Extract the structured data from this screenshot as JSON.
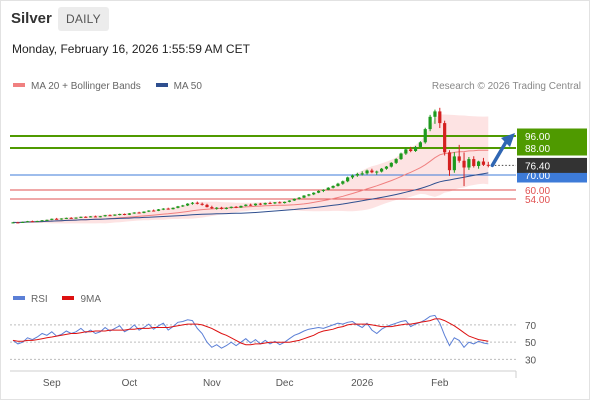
{
  "header": {
    "title": "Silver",
    "timeframe": "DAILY"
  },
  "timestamp": "Monday, February 16, 2026 1:55:59 AM CET",
  "legend_main": [
    {
      "label": "MA 20 + Bollinger Bands",
      "color": "#f08080"
    },
    {
      "label": "MA 50",
      "color": "#2f4f8f"
    }
  ],
  "credit": "Research © 2026 Trading Central",
  "legend_rsi": [
    {
      "label": "RSI",
      "color": "#5b7fd6"
    },
    {
      "label": "9MA",
      "color": "#dd1111"
    }
  ],
  "colors": {
    "bull": "#1e9a1e",
    "bear": "#d42020",
    "bb_fill": "#fcd9d9",
    "ma20": "#f08080",
    "ma50": "#2f4f8f",
    "resistance": "#4f9a00",
    "pivot": "#3d7bd8",
    "support": "#e05050",
    "arrow": "#2f66b3",
    "price_tag": "#333333",
    "rsi": "#5b7fd6",
    "rsi_ma": "#dd1111"
  },
  "chart_data": [
    {
      "type": "candlestick",
      "title": "Silver",
      "subtitle": "DAILY",
      "ylim": [
        0,
        120
      ],
      "x_ticks": [
        "Sep",
        "Oct",
        "Nov",
        "Dec",
        "2026",
        "Feb"
      ],
      "last_price": 76.4,
      "levels": [
        {
          "value": 96.0,
          "label": "96.00",
          "kind": "resistance"
        },
        {
          "value": 88.0,
          "label": "88.00",
          "kind": "resistance"
        },
        {
          "value": 70.0,
          "label": "70.00",
          "kind": "pivot"
        },
        {
          "value": 60.0,
          "label": "60.00",
          "kind": "support"
        },
        {
          "value": 54.0,
          "label": "54.00",
          "kind": "support"
        }
      ],
      "series": [
        {
          "name": "MA 20 + Bollinger Bands"
        },
        {
          "name": "MA 50"
        }
      ],
      "candles": [
        [
          0,
          38.2,
          38.6,
          37.9,
          38.4
        ],
        [
          1,
          38.4,
          38.8,
          38.1,
          38.3
        ],
        [
          2,
          38.3,
          38.9,
          38.0,
          38.7
        ],
        [
          3,
          38.7,
          39.4,
          38.5,
          39.2
        ],
        [
          4,
          39.2,
          39.6,
          38.8,
          39.0
        ],
        [
          5,
          39.0,
          39.5,
          38.7,
          39.3
        ],
        [
          6,
          39.3,
          40.0,
          39.1,
          39.8
        ],
        [
          7,
          39.8,
          40.3,
          39.4,
          40.1
        ],
        [
          8,
          40.1,
          41.0,
          39.9,
          40.8
        ],
        [
          9,
          40.8,
          41.4,
          40.3,
          40.6
        ],
        [
          10,
          40.6,
          41.2,
          40.2,
          41.0
        ],
        [
          11,
          41.0,
          41.6,
          40.7,
          41.4
        ],
        [
          12,
          41.4,
          41.9,
          40.9,
          41.2
        ],
        [
          13,
          41.2,
          41.8,
          40.8,
          41.6
        ],
        [
          14,
          41.6,
          42.3,
          41.3,
          42.1
        ],
        [
          15,
          42.1,
          42.5,
          41.6,
          41.9
        ],
        [
          16,
          41.9,
          42.6,
          41.7,
          42.4
        ],
        [
          17,
          42.4,
          42.9,
          42.0,
          42.3
        ],
        [
          18,
          42.3,
          42.7,
          41.8,
          42.5
        ],
        [
          19,
          42.5,
          43.4,
          42.2,
          43.2
        ],
        [
          20,
          43.2,
          43.7,
          42.8,
          43.0
        ],
        [
          21,
          43.0,
          43.8,
          42.7,
          43.6
        ],
        [
          22,
          43.6,
          44.2,
          43.1,
          44.0
        ],
        [
          23,
          44.0,
          44.3,
          43.2,
          43.5
        ],
        [
          24,
          43.5,
          44.6,
          43.3,
          44.4
        ],
        [
          25,
          44.4,
          45.2,
          44.1,
          45.0
        ],
        [
          26,
          45.0,
          45.5,
          44.3,
          44.7
        ],
        [
          27,
          44.7,
          45.8,
          44.5,
          45.6
        ],
        [
          28,
          45.6,
          46.5,
          45.3,
          46.3
        ],
        [
          29,
          46.3,
          47.0,
          45.8,
          46.1
        ],
        [
          30,
          46.1,
          47.3,
          45.9,
          47.1
        ],
        [
          31,
          47.1,
          47.9,
          46.6,
          47.6
        ],
        [
          32,
          47.6,
          48.2,
          46.9,
          47.2
        ],
        [
          33,
          47.2,
          48.4,
          47.0,
          48.1
        ],
        [
          34,
          48.1,
          49.4,
          47.8,
          49.1
        ],
        [
          35,
          49.1,
          50.1,
          48.7,
          49.7
        ],
        [
          36,
          49.7,
          51.2,
          49.3,
          50.9
        ],
        [
          37,
          50.9,
          52.0,
          50.2,
          51.5
        ],
        [
          38,
          51.5,
          52.3,
          50.4,
          50.8
        ],
        [
          39,
          50.8,
          51.6,
          49.6,
          50.1
        ],
        [
          40,
          50.1,
          50.8,
          48.3,
          48.6
        ],
        [
          41,
          48.6,
          49.5,
          47.3,
          47.8
        ],
        [
          42,
          47.8,
          48.6,
          46.9,
          48.2
        ],
        [
          43,
          48.2,
          48.8,
          47.0,
          47.4
        ],
        [
          44,
          47.4,
          48.5,
          47.1,
          48.1
        ],
        [
          45,
          48.1,
          49.0,
          47.7,
          48.8
        ],
        [
          46,
          48.8,
          49.3,
          47.9,
          48.3
        ],
        [
          47,
          48.3,
          49.6,
          48.1,
          49.4
        ],
        [
          48,
          49.4,
          50.5,
          49.1,
          50.2
        ],
        [
          49,
          50.2,
          50.9,
          49.4,
          49.8
        ],
        [
          50,
          49.8,
          51.1,
          49.5,
          50.9
        ],
        [
          51,
          50.9,
          51.4,
          49.9,
          50.4
        ],
        [
          52,
          50.4,
          51.6,
          50.1,
          51.3
        ],
        [
          53,
          51.3,
          52.2,
          50.8,
          51.1
        ],
        [
          54,
          51.1,
          52.0,
          50.6,
          51.8
        ],
        [
          55,
          51.8,
          52.4,
          51.0,
          51.3
        ],
        [
          56,
          51.3,
          52.3,
          51.0,
          52.1
        ],
        [
          57,
          52.1,
          53.2,
          51.8,
          53.0
        ],
        [
          58,
          53.0,
          54.4,
          52.7,
          54.1
        ],
        [
          59,
          54.1,
          55.3,
          53.6,
          54.9
        ],
        [
          60,
          54.9,
          56.6,
          54.6,
          56.3
        ],
        [
          61,
          56.3,
          57.4,
          55.8,
          57.1
        ],
        [
          62,
          57.1,
          58.5,
          56.6,
          58.2
        ],
        [
          63,
          58.2,
          59.7,
          57.9,
          59.4
        ],
        [
          64,
          59.4,
          60.5,
          58.6,
          60.1
        ],
        [
          65,
          60.1,
          61.9,
          59.8,
          61.5
        ],
        [
          66,
          61.5,
          63.1,
          61.0,
          62.7
        ],
        [
          67,
          62.7,
          64.8,
          62.3,
          64.2
        ],
        [
          68,
          64.2,
          66.3,
          63.5,
          65.8
        ],
        [
          69,
          65.8,
          68.9,
          65.2,
          68.4
        ],
        [
          70,
          68.4,
          70.4,
          67.4,
          69.6
        ],
        [
          71,
          69.6,
          71.5,
          68.8,
          70.7
        ],
        [
          72,
          70.7,
          72.5,
          69.6,
          71.1
        ],
        [
          73,
          71.1,
          73.6,
          70.3,
          73.0
        ],
        [
          74,
          73.0,
          74.2,
          71.2,
          71.8
        ],
        [
          75,
          71.8,
          72.9,
          70.2,
          72.3
        ],
        [
          76,
          72.3,
          74.7,
          71.7,
          74.2
        ],
        [
          77,
          74.2,
          76.0,
          73.5,
          75.6
        ],
        [
          78,
          75.6,
          78.5,
          75.0,
          78.1
        ],
        [
          79,
          78.1,
          81.2,
          77.3,
          80.6
        ],
        [
          80,
          80.6,
          84.9,
          80.1,
          84.3
        ],
        [
          81,
          84.3,
          88.2,
          83.4,
          87.1
        ],
        [
          82,
          87.1,
          88.8,
          85.2,
          86.0
        ],
        [
          83,
          86.0,
          89.4,
          85.4,
          88.7
        ],
        [
          84,
          88.7,
          92.5,
          88.2,
          91.8
        ],
        [
          85,
          91.8,
          101.5,
          90.9,
          100.6
        ],
        [
          86,
          100.6,
          110.1,
          99.2,
          108.8
        ],
        [
          87,
          108.8,
          113.6,
          104.1,
          112.4
        ],
        [
          88,
          112.4,
          114.8,
          101.3,
          104.6
        ],
        [
          89,
          104.6,
          106.2,
          83.0,
          85.1
        ],
        [
          90,
          85.1,
          86.5,
          69.4,
          73.2
        ],
        [
          91,
          73.2,
          85.2,
          71.5,
          82.4
        ],
        [
          92,
          82.4,
          90.1,
          78.2,
          79.5
        ],
        [
          93,
          79.5,
          85.0,
          62.6,
          75.0
        ],
        [
          94,
          75.0,
          82.0,
          73.4,
          80.6
        ],
        [
          95,
          80.6,
          82.5,
          75.0,
          76.0
        ],
        [
          96,
          76.0,
          79.5,
          74.2,
          79.0
        ],
        [
          97,
          79.0,
          81.4,
          76.0,
          76.8
        ],
        [
          98,
          76.8,
          78.8,
          75.1,
          76.4
        ]
      ]
    },
    {
      "type": "line",
      "title": "RSI",
      "ylim": [
        20,
        85
      ],
      "y_ticks": [
        30,
        50,
        70
      ],
      "x_ticks": [
        "Sep",
        "Oct",
        "Nov",
        "Dec",
        "2026",
        "Feb"
      ],
      "series": [
        {
          "name": "RSI",
          "values": [
            52,
            48,
            50,
            55,
            53,
            56,
            60,
            58,
            62,
            57,
            59,
            63,
            60,
            62,
            66,
            61,
            64,
            60,
            62,
            67,
            63,
            66,
            69,
            62,
            65,
            70,
            64,
            67,
            71,
            65,
            69,
            72,
            64,
            68,
            73,
            74,
            76,
            75,
            66,
            60,
            50,
            44,
            47,
            43,
            46,
            50,
            46,
            50,
            54,
            49,
            53,
            48,
            52,
            48,
            51,
            47,
            50,
            54,
            58,
            60,
            63,
            65,
            66,
            67,
            66,
            68,
            70,
            72,
            71,
            73,
            74,
            70,
            67,
            72,
            64,
            60,
            65,
            68,
            70,
            72,
            74,
            75,
            68,
            71,
            73,
            76,
            80,
            81,
            72,
            58,
            46,
            55,
            52,
            44,
            50,
            48,
            51,
            49,
            48
          ]
        },
        {
          "name": "9MA",
          "values": [
            52,
            51,
            51,
            52,
            52,
            53,
            54,
            55,
            56,
            57,
            58,
            59,
            60,
            60,
            61,
            62,
            62,
            63,
            63,
            63,
            64,
            64,
            64,
            64,
            65,
            65,
            66,
            66,
            66,
            67,
            67,
            67,
            67,
            68,
            69,
            70,
            71,
            71,
            71,
            70,
            68,
            66,
            63,
            60,
            58,
            55,
            52,
            49,
            47,
            47,
            48,
            48,
            49,
            50,
            50,
            50,
            50,
            50,
            51,
            52,
            54,
            56,
            58,
            61,
            63,
            64,
            65,
            67,
            68,
            70,
            71,
            71,
            71,
            71,
            70,
            69,
            68,
            68,
            68,
            69,
            70,
            71,
            71,
            72,
            73,
            74,
            75,
            77,
            77,
            75,
            72,
            69,
            65,
            61,
            57,
            55,
            53,
            52,
            51
          ]
        }
      ]
    }
  ]
}
